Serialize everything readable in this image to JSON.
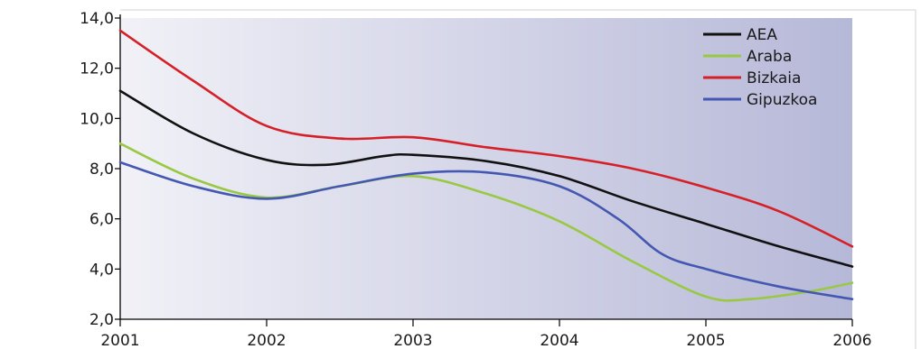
{
  "colors": {
    "plot_bg_left": "#f1f1f7",
    "plot_bg_right": "#b6b8d8",
    "frame": "#d0d0d0",
    "axis": "#000000"
  },
  "chart_data": {
    "type": "line",
    "title": "",
    "xlabel": "",
    "ylabel": "",
    "x": [
      2001,
      2002,
      2003,
      2004,
      2005,
      2006
    ],
    "x_tick_labels": [
      "2001",
      "2002",
      "2003",
      "2004",
      "2005",
      "2006"
    ],
    "y_ticks": [
      2,
      4,
      6,
      8,
      10,
      12,
      14
    ],
    "y_tick_labels": [
      "2,0",
      "4,0",
      "6,0",
      "8,0",
      "10,0",
      "12,0",
      "14,0"
    ],
    "ylim": [
      2,
      14
    ],
    "xlim": [
      2001,
      2006
    ],
    "grid": false,
    "legend_position": "top-right",
    "series": [
      {
        "name": "AEA",
        "color": "#111111",
        "points": [
          [
            2001,
            11.1
          ],
          [
            2001.5,
            9.4
          ],
          [
            2002,
            8.35
          ],
          [
            2002.4,
            8.15
          ],
          [
            2002.8,
            8.5
          ],
          [
            2003,
            8.55
          ],
          [
            2003.5,
            8.3
          ],
          [
            2004,
            7.7
          ],
          [
            2004.5,
            6.7
          ],
          [
            2005,
            5.8
          ],
          [
            2005.5,
            4.9
          ],
          [
            2006,
            4.1
          ]
        ]
      },
      {
        "name": "Araba",
        "color": "#99c843",
        "points": [
          [
            2001,
            9.0
          ],
          [
            2001.5,
            7.6
          ],
          [
            2002,
            6.85
          ],
          [
            2002.5,
            7.3
          ],
          [
            2003,
            7.7
          ],
          [
            2003.5,
            7.0
          ],
          [
            2004,
            5.9
          ],
          [
            2004.5,
            4.3
          ],
          [
            2005,
            2.9
          ],
          [
            2005.3,
            2.8
          ],
          [
            2005.7,
            3.1
          ],
          [
            2006,
            3.45
          ]
        ]
      },
      {
        "name": "Bizkaia",
        "color": "#d62027",
        "points": [
          [
            2001,
            13.5
          ],
          [
            2001.5,
            11.5
          ],
          [
            2002,
            9.7
          ],
          [
            2002.5,
            9.2
          ],
          [
            2003,
            9.25
          ],
          [
            2003.5,
            8.85
          ],
          [
            2004,
            8.5
          ],
          [
            2004.5,
            8.0
          ],
          [
            2005,
            7.25
          ],
          [
            2005.5,
            6.3
          ],
          [
            2006,
            4.9
          ]
        ]
      },
      {
        "name": "Gipuzkoa",
        "color": "#4458b2",
        "points": [
          [
            2001,
            8.25
          ],
          [
            2001.5,
            7.3
          ],
          [
            2002,
            6.8
          ],
          [
            2002.5,
            7.3
          ],
          [
            2003,
            7.8
          ],
          [
            2003.5,
            7.85
          ],
          [
            2004,
            7.3
          ],
          [
            2004.4,
            6.0
          ],
          [
            2004.7,
            4.6
          ],
          [
            2005,
            4.0
          ],
          [
            2005.5,
            3.3
          ],
          [
            2006,
            2.8
          ]
        ]
      }
    ]
  }
}
